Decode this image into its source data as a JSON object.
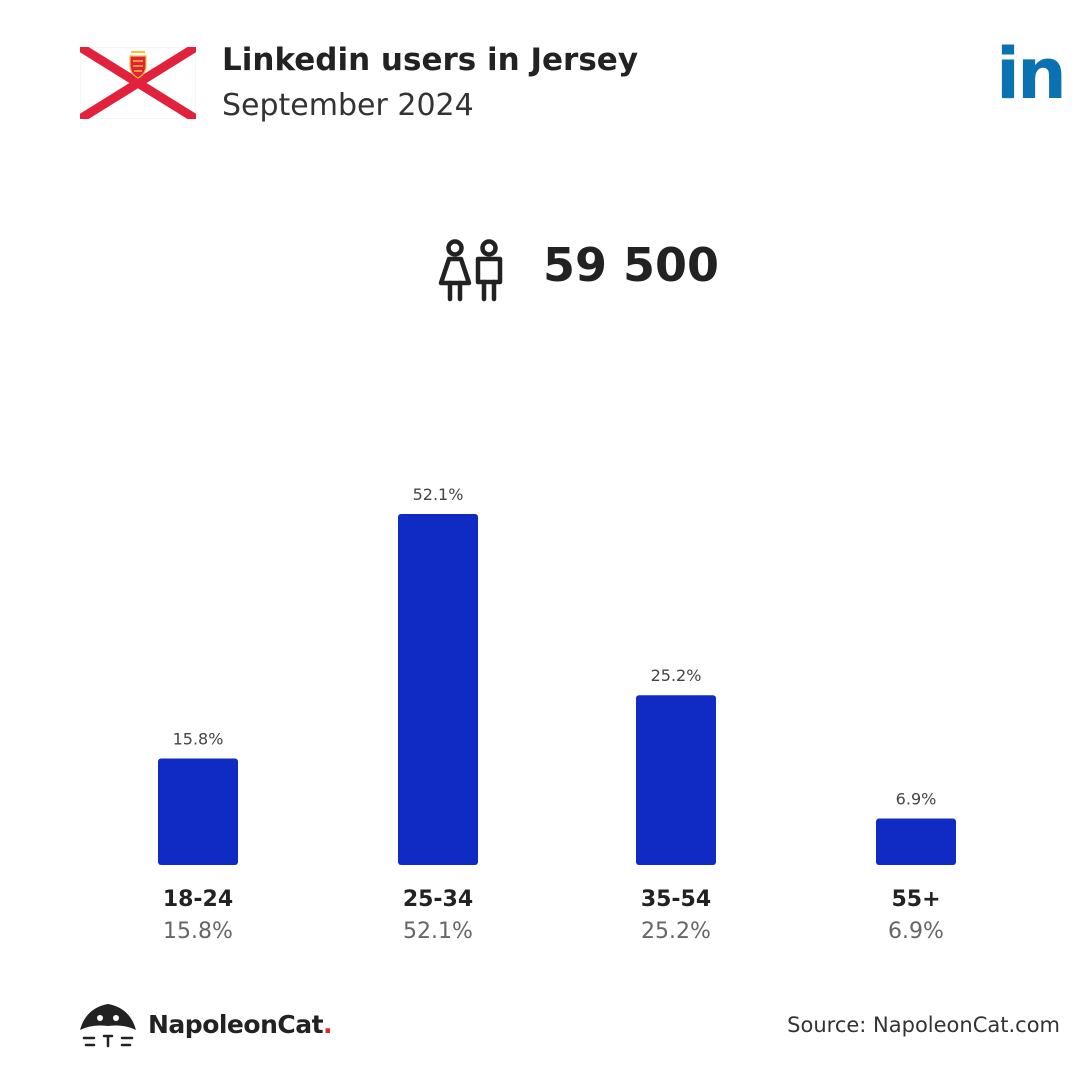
{
  "header": {
    "title": "Linkedin users in Jersey",
    "subtitle": "September 2024",
    "flag_icon": "jersey-flag-icon",
    "logo_icon": "linkedin-logo-icon",
    "logo_text": "in"
  },
  "total": {
    "icon": "users-icon",
    "value": "59 500"
  },
  "chart_data": {
    "type": "bar",
    "categories": [
      "18-24",
      "25-34",
      "35-54",
      "55+"
    ],
    "values": [
      15.8,
      52.1,
      25.2,
      6.9
    ],
    "value_labels": [
      "15.8%",
      "52.1%",
      "25.2%",
      "6.9%"
    ],
    "title": "",
    "xlabel": "",
    "ylabel": "",
    "ylim": [
      0,
      52.1
    ],
    "grid": false,
    "bar_color": "#0f2bc4"
  },
  "footer": {
    "brand_icon": "napoleoncat-logo-icon",
    "brand_name": "NapoleonCat",
    "brand_dot": ".",
    "source": "Source: NapoleonCat.com"
  },
  "colors": {
    "bar": "#0f2bc4",
    "flag_red": "#e2223c",
    "linkedin_blue": "#0a72b1",
    "brand_red": "#e1262d"
  }
}
